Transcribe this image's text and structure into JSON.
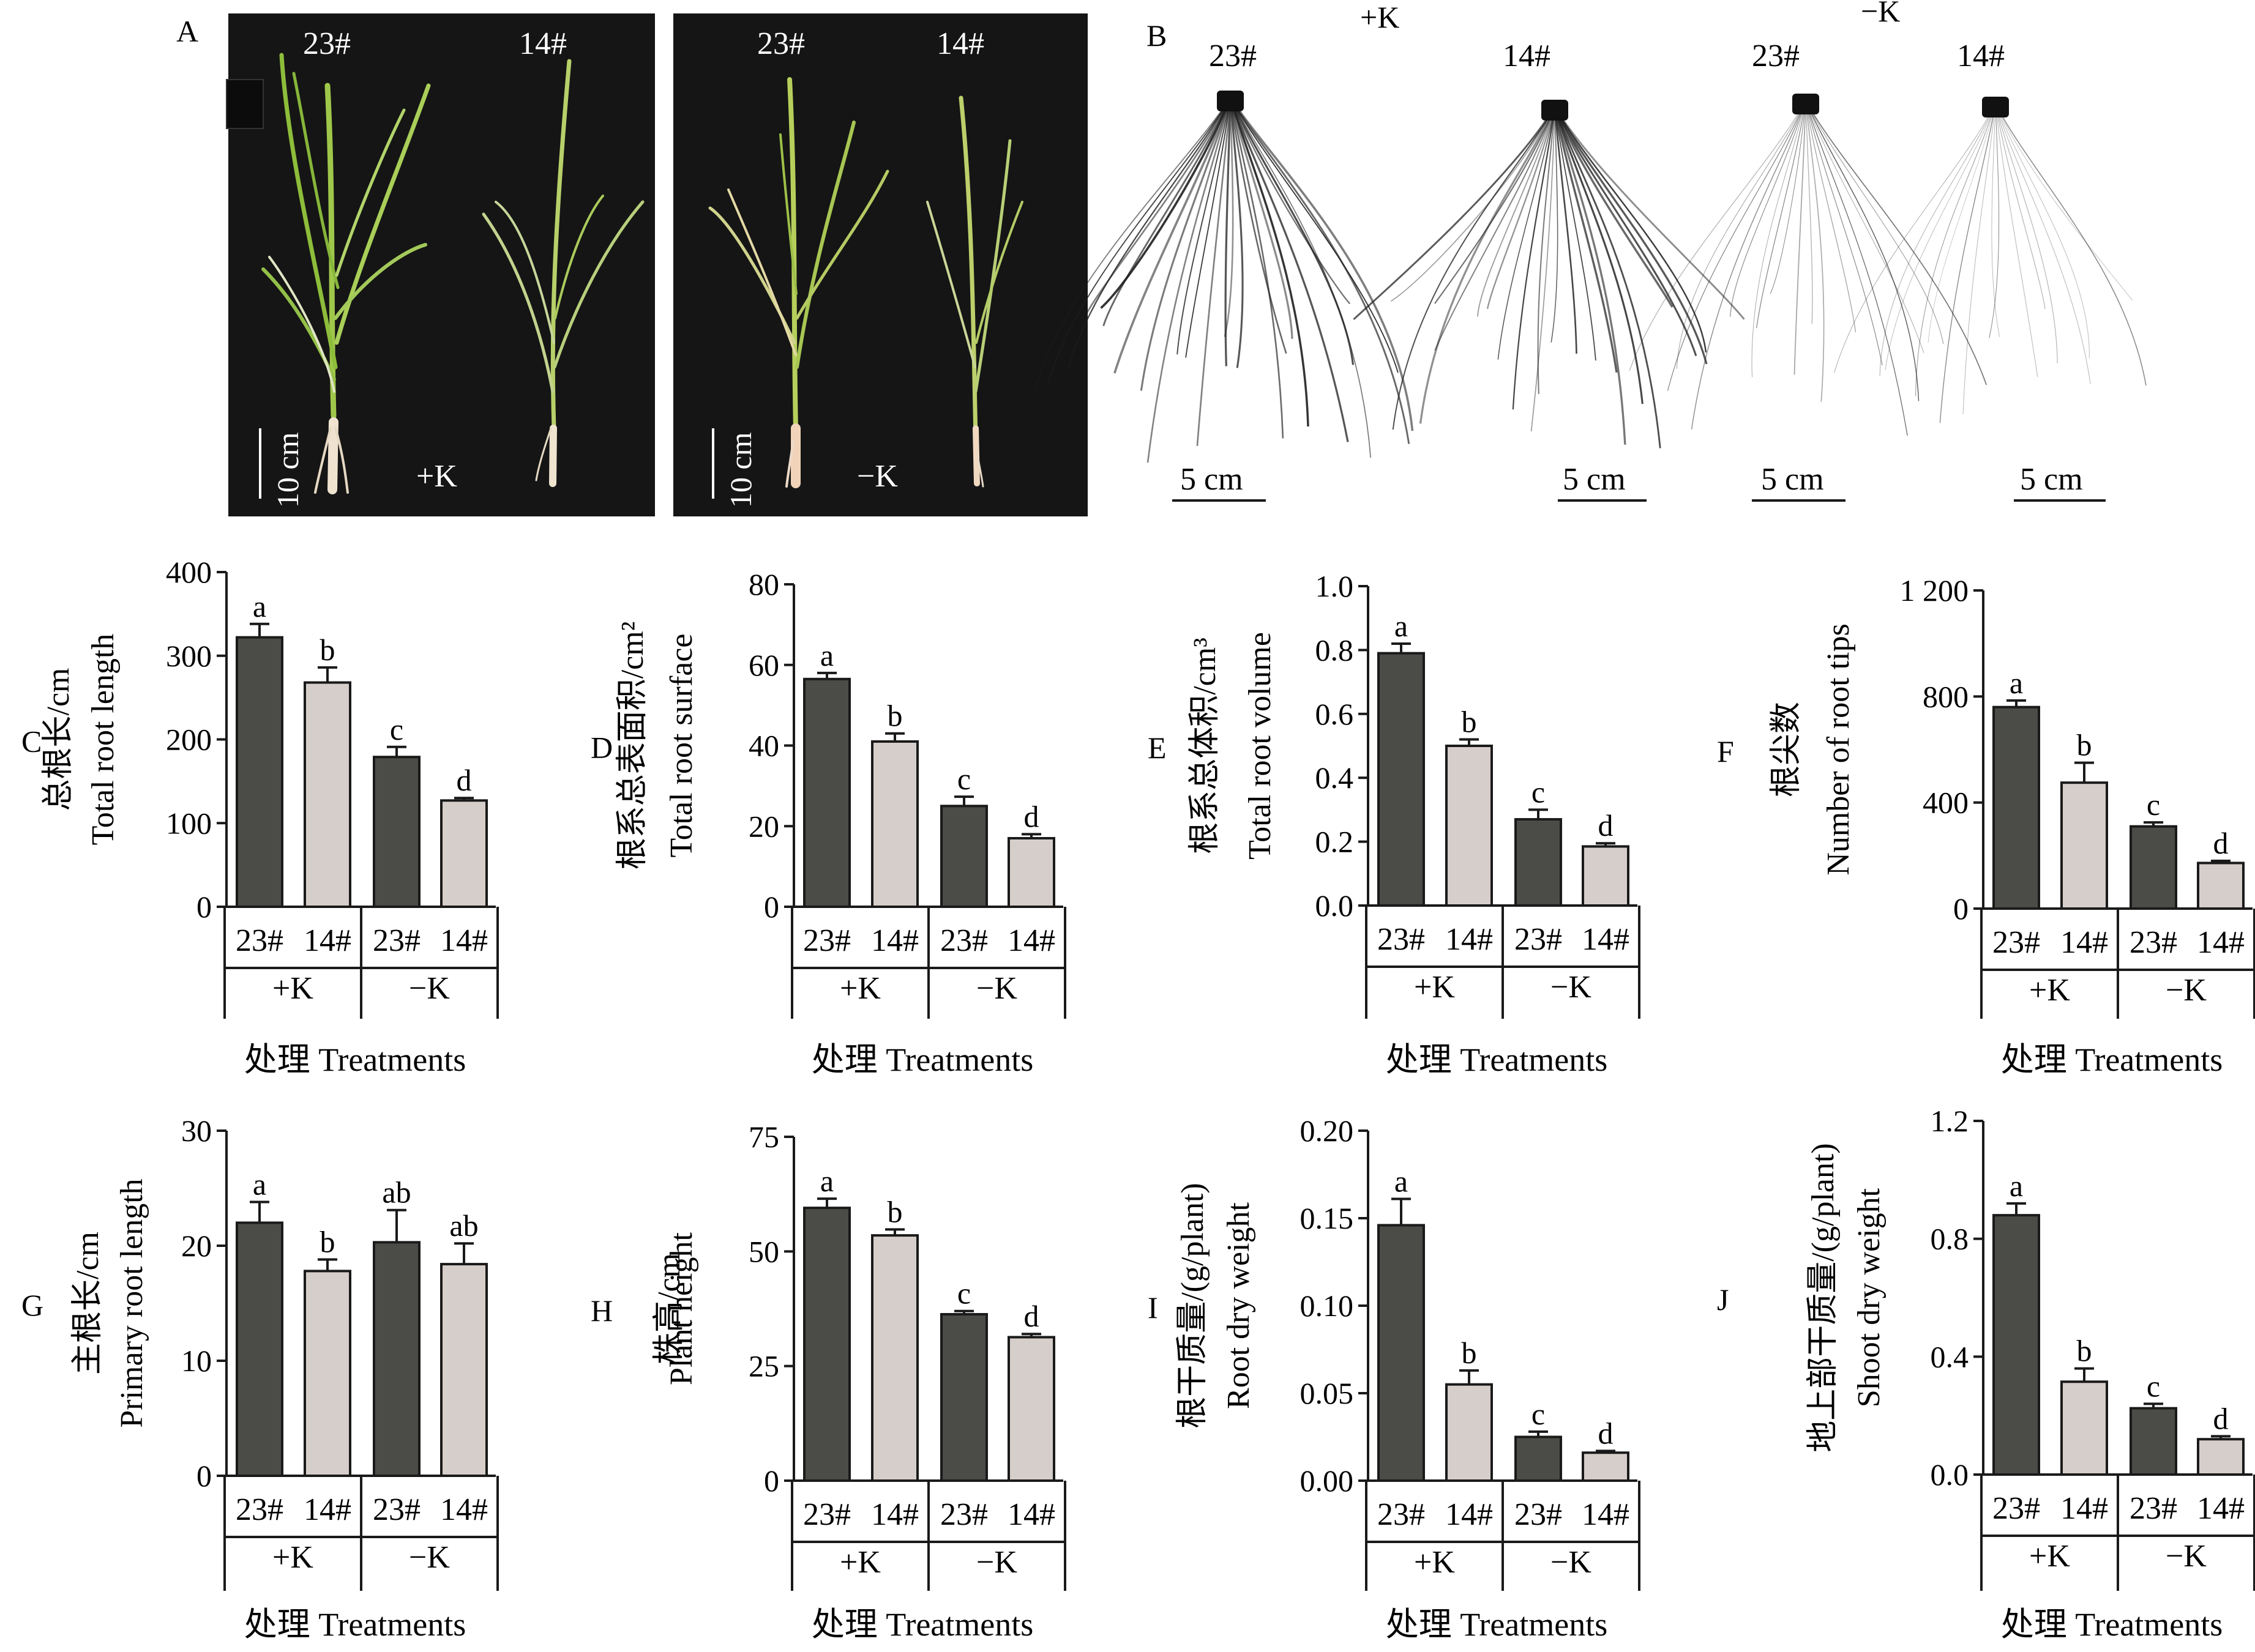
{
  "colors": {
    "dark_bar": "#4b4b47",
    "light_bar": "#d6ceca",
    "axis": "#1a1a1a",
    "photo_bg": "#151515",
    "root_ink": "#1c1c1c"
  },
  "photos": {
    "panel_a": {
      "label": "A",
      "left_photo": {
        "genotypes": [
          "23#",
          "14#"
        ],
        "treatment": "+K",
        "scale": "10 cm"
      },
      "right_photo": {
        "genotypes": [
          "23#",
          "14#"
        ],
        "treatment": "−K",
        "scale": "10 cm"
      }
    },
    "panel_b": {
      "label": "B",
      "groups": [
        {
          "treatment": "+K",
          "genotypes": [
            "23#",
            "14#"
          ]
        },
        {
          "treatment": "−K",
          "genotypes": [
            "23#",
            "14#"
          ]
        }
      ],
      "scale": "5 cm"
    }
  },
  "shared": {
    "categories": [
      "23#",
      "14#",
      "23#",
      "14#"
    ],
    "groups": [
      "+K",
      "−K"
    ],
    "xlabel": "处理 Treatments"
  },
  "chart_data": [
    {
      "panel": "C",
      "type": "bar",
      "ylabel_cn": "总根长/cm",
      "ylabel_en": "Total root length",
      "ylim": [
        0,
        400
      ],
      "ticks": [
        "0",
        "100",
        "200",
        "300",
        "400"
      ],
      "tick_values": [
        0,
        100,
        200,
        300,
        400
      ],
      "values": [
        322,
        268,
        179,
        127
      ],
      "errors": [
        16,
        18,
        12,
        3
      ],
      "letters": [
        "a",
        "b",
        "c",
        "d"
      ]
    },
    {
      "panel": "D",
      "type": "bar",
      "ylabel_cn": "根系总表面积/cm²",
      "ylabel_en": "Total root surface",
      "ylim": [
        0,
        80
      ],
      "ticks": [
        "0",
        "20",
        "40",
        "60",
        "80"
      ],
      "tick_values": [
        0,
        20,
        40,
        60,
        80
      ],
      "values": [
        56.5,
        41,
        25,
        17
      ],
      "errors": [
        1.5,
        2,
        2.3,
        1
      ],
      "letters": [
        "a",
        "b",
        "c",
        "d"
      ]
    },
    {
      "panel": "E",
      "type": "bar",
      "ylabel_cn": "根系总体积/cm³",
      "ylabel_en": "Total root volume",
      "ylim": [
        0,
        1.0
      ],
      "ticks": [
        "0.0",
        "0.2",
        "0.4",
        "0.6",
        "0.8",
        "1.0"
      ],
      "tick_values": [
        0,
        0.2,
        0.4,
        0.6,
        0.8,
        1.0
      ],
      "values": [
        0.79,
        0.5,
        0.27,
        0.185
      ],
      "errors": [
        0.03,
        0.02,
        0.03,
        0.01
      ],
      "letters": [
        "a",
        "b",
        "c",
        "d"
      ]
    },
    {
      "panel": "F",
      "type": "bar",
      "ylabel_cn": "根尖数",
      "ylabel_en": "Number of root tips",
      "ylim": [
        0,
        1200
      ],
      "ticks": [
        "0",
        "400",
        "800",
        "1 200"
      ],
      "tick_values": [
        0,
        400,
        800,
        1200
      ],
      "values": [
        760,
        475,
        310,
        172
      ],
      "errors": [
        25,
        75,
        15,
        8
      ],
      "letters": [
        "a",
        "b",
        "c",
        "d"
      ]
    },
    {
      "panel": "G",
      "type": "bar",
      "ylabel_cn": "主根长/cm",
      "ylabel_en": "Primary root length",
      "ylim": [
        0,
        30
      ],
      "ticks": [
        "0",
        "10",
        "20",
        "30"
      ],
      "tick_values": [
        0,
        10,
        20,
        30
      ],
      "values": [
        22,
        17.8,
        20.3,
        18.4
      ],
      "errors": [
        1.8,
        1,
        2.8,
        1.8
      ],
      "letters": [
        "a",
        "b",
        "ab",
        "ab"
      ]
    },
    {
      "panel": "H",
      "type": "bar",
      "ylabel_cn": "株高/cm",
      "ylabel_en": "Plant height",
      "ylim": [
        0,
        75
      ],
      "ticks": [
        "0",
        "25",
        "50",
        "75"
      ],
      "tick_values": [
        0,
        25,
        50,
        75
      ],
      "values": [
        59.5,
        53.5,
        36.3,
        31.3
      ],
      "errors": [
        2,
        1.3,
        0.7,
        0.7
      ],
      "letters": [
        "a",
        "b",
        "c",
        "d"
      ]
    },
    {
      "panel": "I",
      "type": "bar",
      "ylabel_cn": "根干质量/(g/plant)",
      "ylabel_en": "Root dry weight",
      "ylim": [
        0,
        0.2
      ],
      "ticks": [
        "0.00",
        "0.05",
        "0.10",
        "0.15",
        "0.20"
      ],
      "tick_values": [
        0,
        0.05,
        0.1,
        0.15,
        0.2
      ],
      "values": [
        0.146,
        0.055,
        0.025,
        0.016
      ],
      "errors": [
        0.015,
        0.008,
        0.003,
        0.001
      ],
      "letters": [
        "a",
        "b",
        "c",
        "d"
      ]
    },
    {
      "panel": "J",
      "type": "bar",
      "ylabel_cn": "地上部干质量/(g/plant)",
      "ylabel_en": "Shoot dry weight",
      "ylim": [
        0,
        1.2
      ],
      "ticks": [
        "0.0",
        "0.4",
        "0.8",
        "1.2"
      ],
      "tick_values": [
        0,
        0.4,
        0.8,
        1.2
      ],
      "values": [
        0.88,
        0.315,
        0.225,
        0.12
      ],
      "errors": [
        0.04,
        0.045,
        0.015,
        0.01
      ],
      "letters": [
        "a",
        "b",
        "c",
        "d"
      ]
    }
  ]
}
